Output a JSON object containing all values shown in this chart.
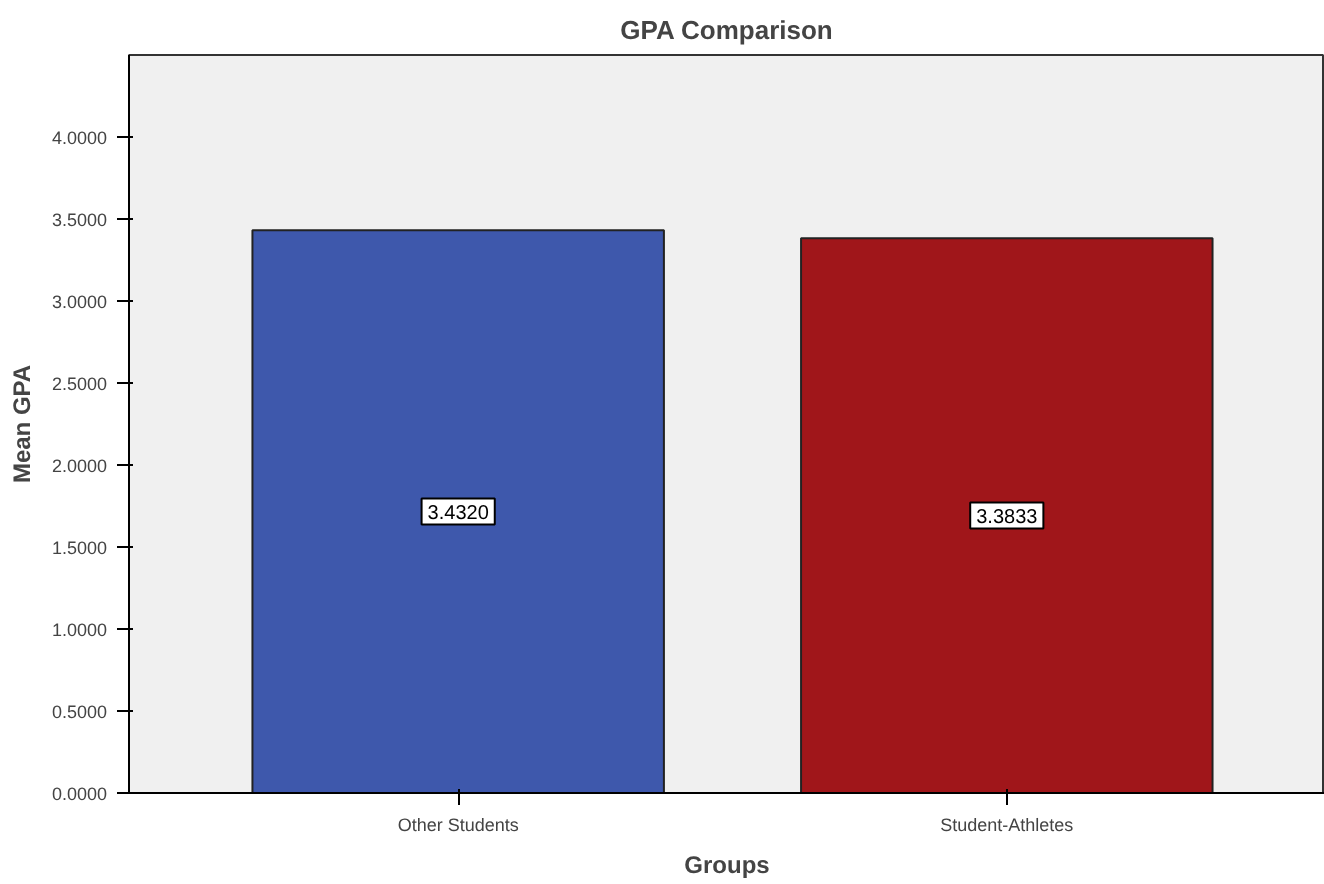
{
  "chart_data": {
    "type": "bar",
    "title": "GPA Comparison",
    "xlabel": "Groups",
    "ylabel": "Mean GPA",
    "categories": [
      "Other Students",
      "Student-Athletes"
    ],
    "values": [
      3.432,
      3.3833
    ],
    "colors": [
      "#3e58ac",
      "#a0161a"
    ],
    "value_labels": [
      "3.4320",
      "3.3833"
    ],
    "ylim": [
      0,
      4.5
    ],
    "yticks": [
      {
        "value": 0,
        "label": "0.0000"
      },
      {
        "value": 0.5,
        "label": "0.5000"
      },
      {
        "value": 1,
        "label": "1.0000"
      },
      {
        "value": 1.5,
        "label": "1.5000"
      },
      {
        "value": 2,
        "label": "2.0000"
      },
      {
        "value": 2.5,
        "label": "2.5000"
      },
      {
        "value": 3,
        "label": "3.0000"
      },
      {
        "value": 3.5,
        "label": "3.5000"
      },
      {
        "value": 4,
        "label": "4.0000"
      }
    ],
    "grid": false
  }
}
